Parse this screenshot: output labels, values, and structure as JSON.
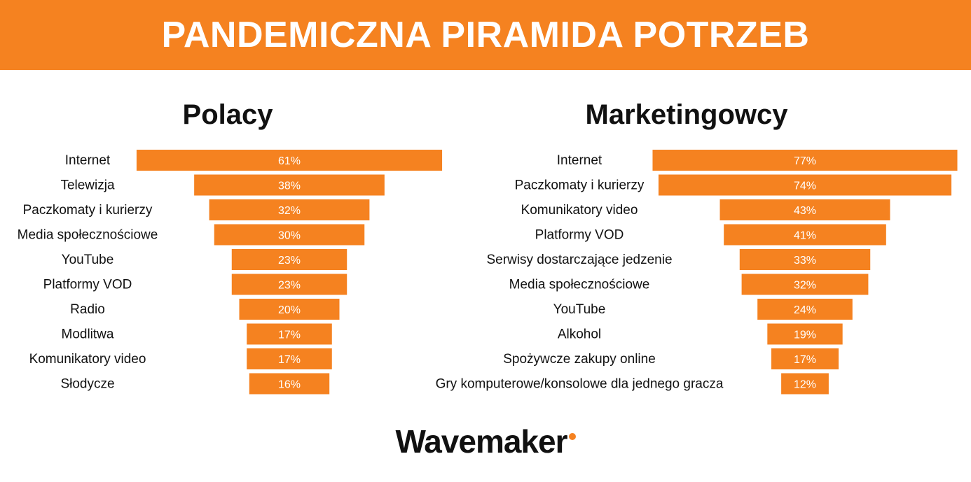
{
  "header": {
    "title": "PANDEMICZNA PIRAMIDA POTRZEB"
  },
  "footer": {
    "brand": "Wavemaker"
  },
  "colors": {
    "accent": "#f58220",
    "bar_text": "#ffffff",
    "label_text": "#111111"
  },
  "chart_data": [
    {
      "type": "bar",
      "orientation": "horizontal-centered",
      "title": "Polacy",
      "categories": [
        "Internet",
        "Telewizja",
        "Paczkomaty i kurierzy",
        "Media społecznościowe",
        "YouTube",
        "Platformy VOD",
        "Radio",
        "Modlitwa",
        "Komunikatory video",
        "Słodycze"
      ],
      "values": [
        61,
        38,
        32,
        30,
        23,
        23,
        20,
        17,
        17,
        16
      ],
      "value_labels": [
        "61%",
        "38%",
        "32%",
        "30%",
        "23%",
        "23%",
        "20%",
        "17%",
        "17%",
        "16%"
      ],
      "unit": "%"
    },
    {
      "type": "bar",
      "orientation": "horizontal-centered",
      "title": "Marketingowcy",
      "categories": [
        "Internet",
        "Paczkomaty i kurierzy",
        "Komunikatory video",
        "Platformy VOD",
        "Serwisy dostarczające jedzenie",
        "Media społecznościowe",
        "YouTube",
        "Alkohol",
        "Spożywcze zakupy online",
        "Gry komputerowe/konsolowe dla jednego gracza"
      ],
      "values": [
        77,
        74,
        43,
        41,
        33,
        32,
        24,
        19,
        17,
        12
      ],
      "value_labels": [
        "77%",
        "74%",
        "43%",
        "41%",
        "33%",
        "32%",
        "24%",
        "19%",
        "17%",
        "12%"
      ],
      "unit": "%"
    }
  ]
}
